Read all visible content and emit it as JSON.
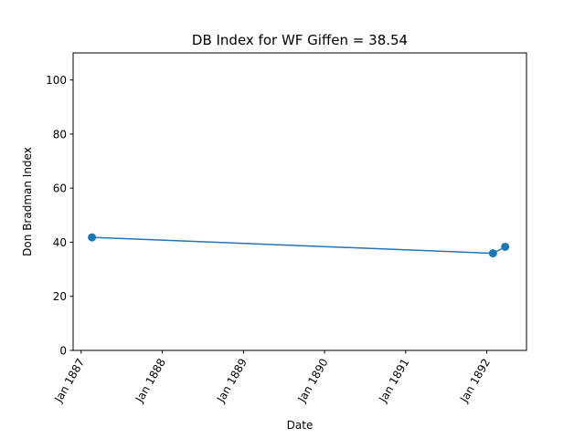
{
  "chart_data": {
    "type": "line",
    "title": "DB Index for WF Giffen = 38.54",
    "xlabel": "Date",
    "ylabel": "Don Bradman Index",
    "x_ticks": [
      "Jan 1887",
      "Jan 1888",
      "Jan 1889",
      "Jan 1890",
      "Jan 1891",
      "Jan 1892"
    ],
    "x_range": [
      "1886-11-26",
      "1892-06-28"
    ],
    "y_ticks": [
      0,
      20,
      40,
      60,
      80,
      100
    ],
    "ylim": [
      0,
      110
    ],
    "grid": false,
    "legend": "none",
    "series": [
      {
        "color": "#1f77b4",
        "x": [
          "1887-02-19",
          "1892-01-29",
          "1892-03-24"
        ],
        "y": [
          41.8,
          35.9,
          38.3
        ]
      }
    ]
  }
}
